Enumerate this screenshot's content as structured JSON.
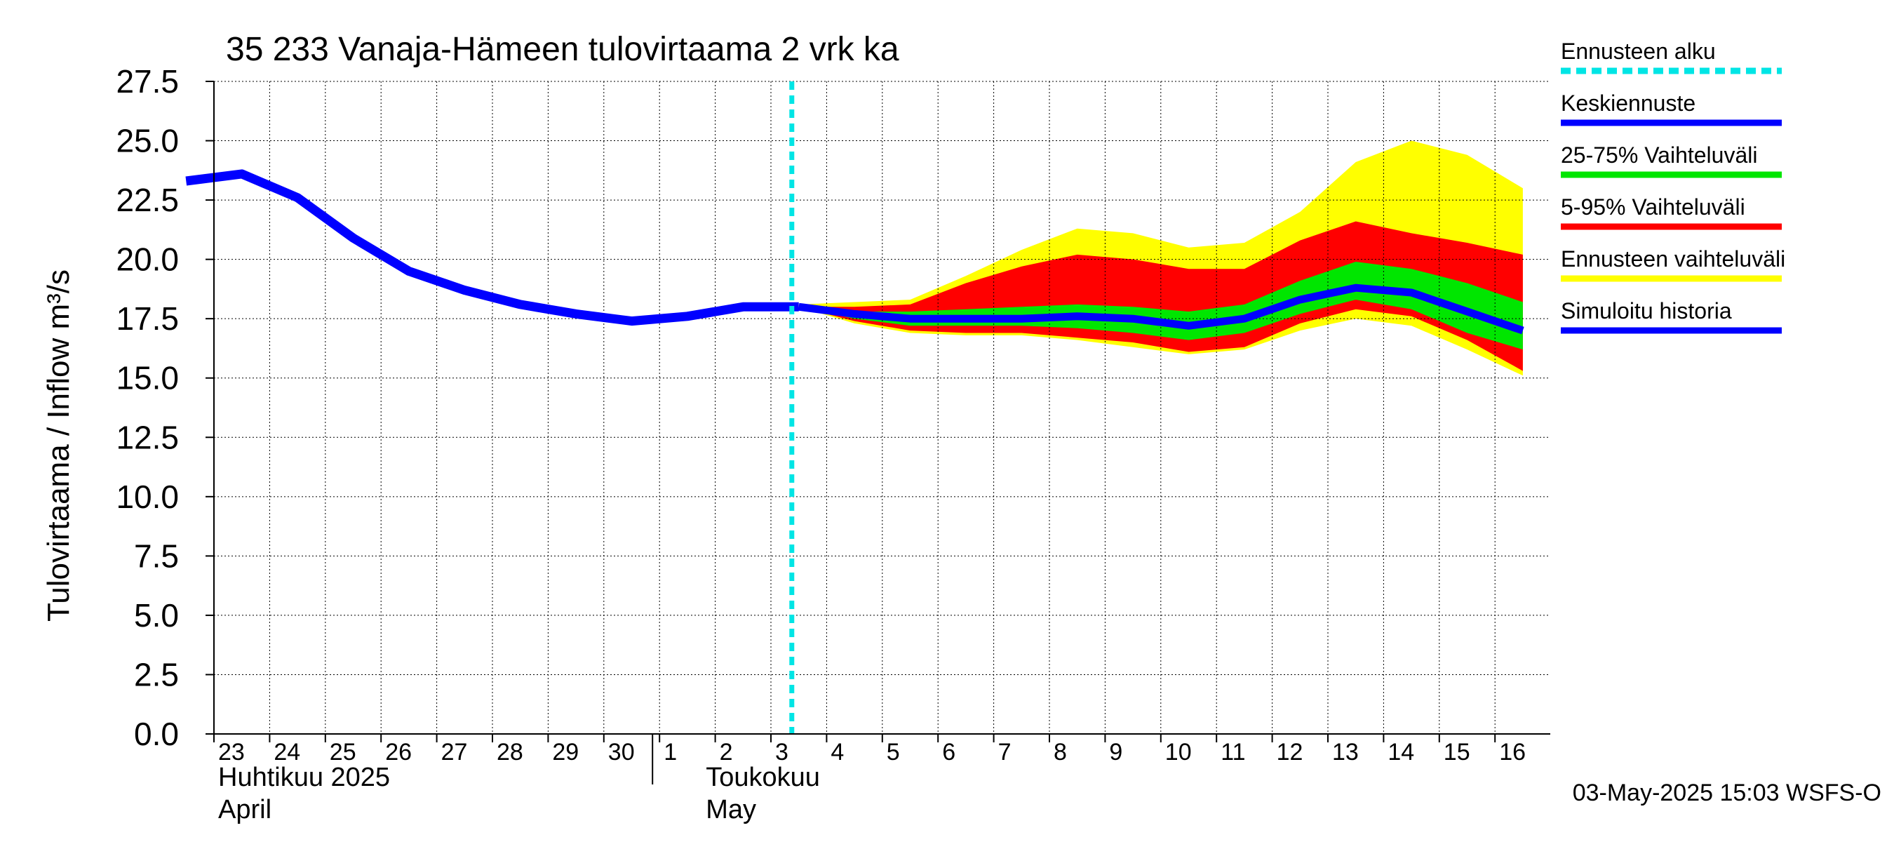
{
  "chart_data": {
    "type": "area",
    "title": "35 233 Vanaja-Hämeen tulovirtaama 2 vrk ka",
    "ylabel": "Tulovirtaama / Inflow    m³/s",
    "ylim": [
      0,
      27.5
    ],
    "yticks": [
      "0.0",
      "2.5",
      "5.0",
      "7.5",
      "10.0",
      "12.5",
      "15.0",
      "17.5",
      "20.0",
      "22.5",
      "25.0",
      "27.5"
    ],
    "grid": true,
    "legend_position": "right",
    "x_tick_labels": [
      "23",
      "24",
      "25",
      "26",
      "27",
      "28",
      "29",
      "30",
      "1",
      "2",
      "3",
      "4",
      "5",
      "6",
      "7",
      "8",
      "9",
      "10",
      "11",
      "12",
      "13",
      "14",
      "15",
      "16"
    ],
    "month_labels": [
      {
        "line1": "Huhtikuu  2025",
        "line2": "April"
      },
      {
        "line1": "Toukokuu",
        "line2": "May"
      }
    ],
    "forecast_start": "2025-05-02 21:00",
    "colors": {
      "forecast_start": "#00e5e5",
      "mean": "#0000ff",
      "range_25_75": "#00e600",
      "range_5_95": "#ff0000",
      "range_full": "#ffff00",
      "history": "#0000ff",
      "grid": "#000000"
    },
    "legend": [
      {
        "label": "Ennusteen alku",
        "key": "forecast_start",
        "style": "dashed"
      },
      {
        "label": "Keskiennuste",
        "key": "mean",
        "style": "solid"
      },
      {
        "label": "25-75% Vaihteluväli",
        "key": "range_25_75",
        "style": "solid"
      },
      {
        "label": "5-95% Vaihteluväli",
        "key": "range_5_95",
        "style": "solid"
      },
      {
        "label": "Ennusteen vaihteluväli",
        "key": "range_full",
        "style": "solid"
      },
      {
        "label": "Simuloitu historia",
        "key": "history",
        "style": "solid"
      }
    ],
    "history": {
      "name": "Simuloitu historia",
      "x": [
        "2025-04-22",
        "2025-04-23",
        "2025-04-24",
        "2025-04-25",
        "2025-04-26",
        "2025-04-27",
        "2025-04-28",
        "2025-04-29",
        "2025-04-30",
        "2025-05-01",
        "2025-05-02",
        "2025-05-03"
      ],
      "y": [
        23.3,
        23.6,
        22.6,
        20.9,
        19.5,
        18.7,
        18.1,
        17.7,
        17.4,
        17.6,
        18.0,
        18.0
      ]
    },
    "forecast": {
      "x": [
        "2025-05-03",
        "2025-05-04",
        "2025-05-05",
        "2025-05-06",
        "2025-05-07",
        "2025-05-08",
        "2025-05-09",
        "2025-05-10",
        "2025-05-11",
        "2025-05-12",
        "2025-05-13",
        "2025-05-14",
        "2025-05-15",
        "2025-05-16"
      ],
      "mean": [
        18.0,
        17.7,
        17.5,
        17.5,
        17.5,
        17.6,
        17.5,
        17.2,
        17.5,
        18.3,
        18.8,
        18.6,
        17.8,
        17.0
      ],
      "p25": [
        18.0,
        17.5,
        17.2,
        17.2,
        17.2,
        17.1,
        16.9,
        16.6,
        16.9,
        17.7,
        18.3,
        17.9,
        16.9,
        16.2
      ],
      "p75": [
        18.0,
        17.8,
        17.8,
        17.9,
        18.0,
        18.1,
        18.0,
        17.8,
        18.1,
        19.1,
        19.9,
        19.6,
        19.0,
        18.2
      ],
      "p5": [
        18.0,
        17.4,
        17.0,
        16.9,
        16.9,
        16.7,
        16.5,
        16.1,
        16.3,
        17.3,
        17.9,
        17.6,
        16.6,
        15.3
      ],
      "p95": [
        18.0,
        18.0,
        18.1,
        19.0,
        19.7,
        20.2,
        20.0,
        19.6,
        19.6,
        20.8,
        21.6,
        21.1,
        20.7,
        20.2
      ],
      "min": [
        18.0,
        17.3,
        16.9,
        16.8,
        16.8,
        16.6,
        16.3,
        16.0,
        16.2,
        17.0,
        17.5,
        17.2,
        16.2,
        15.1
      ],
      "max": [
        18.1,
        18.2,
        18.3,
        19.3,
        20.4,
        21.3,
        21.1,
        20.5,
        20.7,
        22.0,
        24.1,
        25.0,
        24.4,
        23.0
      ]
    }
  },
  "footer": {
    "timestamp": "03-May-2025 15:03 WSFS-O"
  }
}
